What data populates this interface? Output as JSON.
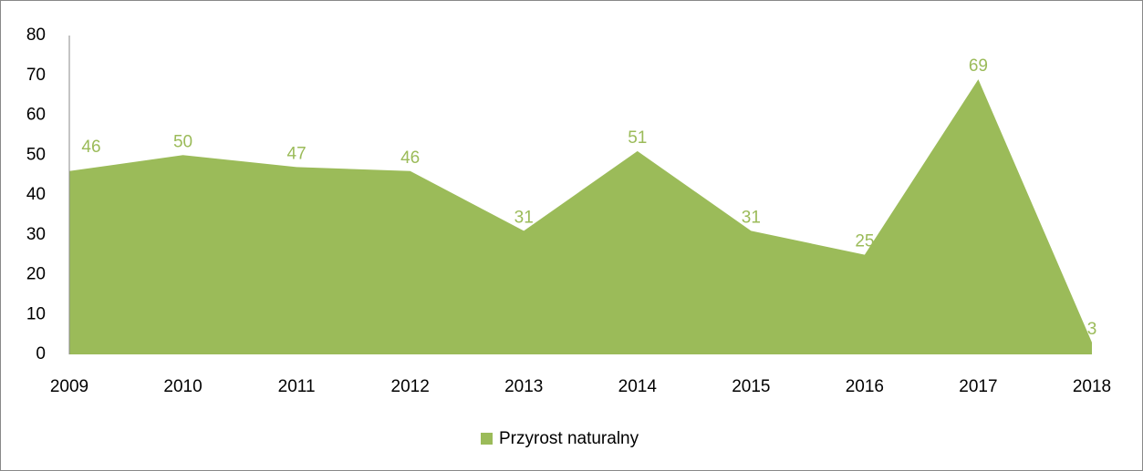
{
  "chart_data": {
    "type": "area",
    "categories": [
      "2009",
      "2010",
      "2011",
      "2012",
      "2013",
      "2014",
      "2015",
      "2016",
      "2017",
      "2018"
    ],
    "series": [
      {
        "name": "Przyrost naturalny",
        "color": "#9bbb59",
        "values": [
          46,
          50,
          47,
          46,
          31,
          51,
          31,
          25,
          69,
          3
        ]
      }
    ],
    "ylim": [
      0,
      80
    ],
    "yticks": [
      0,
      10,
      20,
      30,
      40,
      50,
      60,
      70,
      80
    ],
    "grid": false,
    "legend": "bottom",
    "data_labels": true
  }
}
